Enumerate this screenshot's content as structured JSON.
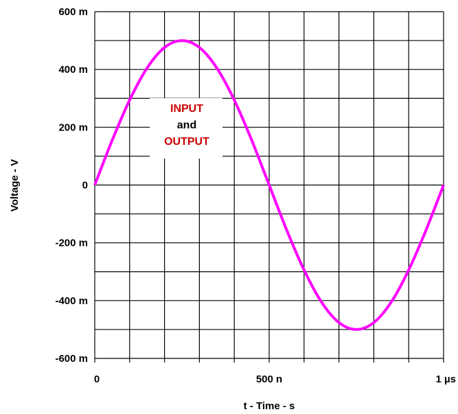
{
  "chart_data": {
    "type": "line",
    "xlabel": "t - Time - s",
    "ylabel": "Voltage - V",
    "xlim": [
      0,
      1e-06
    ],
    "ylim": [
      -0.6,
      0.6
    ],
    "x_ticks": [
      {
        "value": 0,
        "label": "0"
      },
      {
        "value": 5e-07,
        "label": "500 n"
      },
      {
        "value": 1e-06,
        "label": "1 µs"
      }
    ],
    "y_ticks": [
      {
        "value": 0.6,
        "label": "600 m"
      },
      {
        "value": 0.4,
        "label": "400 m"
      },
      {
        "value": 0.2,
        "label": "200 m"
      },
      {
        "value": 0,
        "label": "0"
      },
      {
        "value": -0.2,
        "label": "-200 m"
      },
      {
        "value": -0.4,
        "label": "-400 m"
      },
      {
        "value": -0.6,
        "label": "-600 m"
      }
    ],
    "grid": true,
    "grid_divisions": {
      "x": 10,
      "y": 12
    },
    "series": [
      {
        "color": "#ff00ff",
        "x": [
          0,
          5e-08,
          1e-07,
          1.5e-07,
          2e-07,
          2.5e-07,
          3e-07,
          3.5e-07,
          4e-07,
          4.5e-07,
          5e-07,
          5.5e-07,
          6e-07,
          6.5e-07,
          7e-07,
          7.5e-07,
          8e-07,
          8.5e-07,
          9e-07,
          9.5e-07,
          1e-06
        ],
        "y": [
          0,
          0.155,
          0.294,
          0.405,
          0.476,
          0.5,
          0.476,
          0.405,
          0.294,
          0.155,
          0,
          -0.155,
          -0.294,
          -0.405,
          -0.476,
          -0.5,
          -0.476,
          -0.405,
          -0.294,
          -0.155,
          0
        ]
      }
    ],
    "annotation": {
      "lines": [
        "INPUT",
        "and",
        "OUTPUT"
      ],
      "colors": [
        "#cc0000",
        "#000000",
        "#cc0000"
      ]
    }
  }
}
